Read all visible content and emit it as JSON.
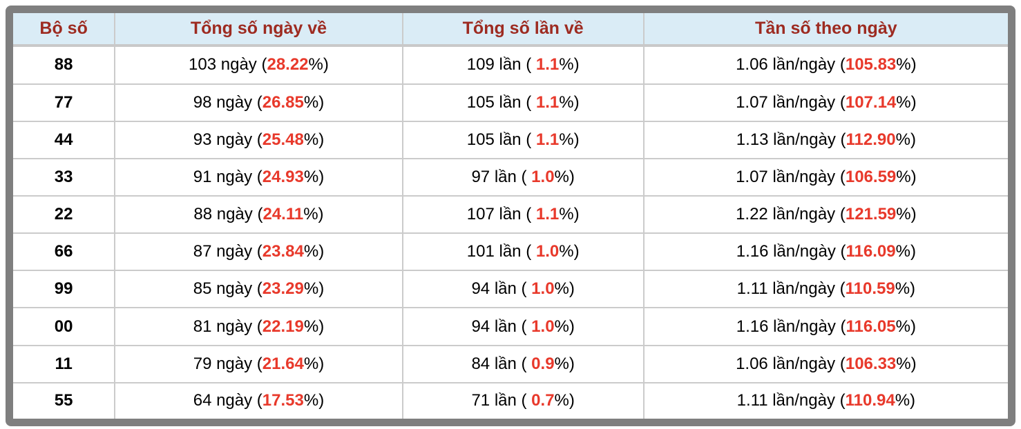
{
  "table": {
    "headers": [
      "Bộ số",
      "Tổng số ngày về",
      "Tổng số lần về",
      "Tần số theo ngày"
    ],
    "rows": [
      {
        "num": "88",
        "days": "103 ngày",
        "days_pct": "28.22",
        "times": "109 lần",
        "times_pct": "1.1",
        "freq": "1.06 lần/ngày",
        "freq_pct": "105.83"
      },
      {
        "num": "77",
        "days": "98 ngày",
        "days_pct": "26.85",
        "times": "105 lần",
        "times_pct": "1.1",
        "freq": "1.07 lần/ngày",
        "freq_pct": "107.14"
      },
      {
        "num": "44",
        "days": "93 ngày",
        "days_pct": "25.48",
        "times": "105 lần",
        "times_pct": "1.1",
        "freq": "1.13 lần/ngày",
        "freq_pct": "112.90"
      },
      {
        "num": "33",
        "days": "91 ngày",
        "days_pct": "24.93",
        "times": "97 lần",
        "times_pct": "1.0",
        "freq": "1.07 lần/ngày",
        "freq_pct": "106.59"
      },
      {
        "num": "22",
        "days": "88 ngày",
        "days_pct": "24.11",
        "times": "107 lần",
        "times_pct": "1.1",
        "freq": "1.22 lần/ngày",
        "freq_pct": "121.59"
      },
      {
        "num": "66",
        "days": "87 ngày",
        "days_pct": "23.84",
        "times": "101 lần",
        "times_pct": "1.0",
        "freq": "1.16 lần/ngày",
        "freq_pct": "116.09"
      },
      {
        "num": "99",
        "days": "85 ngày",
        "days_pct": "23.29",
        "times": "94 lần",
        "times_pct": "1.0",
        "freq": "1.11 lần/ngày",
        "freq_pct": "110.59"
      },
      {
        "num": "00",
        "days": "81 ngày",
        "days_pct": "22.19",
        "times": "94 lần",
        "times_pct": "1.0",
        "freq": "1.16 lần/ngày",
        "freq_pct": "116.05"
      },
      {
        "num": "11",
        "days": "79 ngày",
        "days_pct": "21.64",
        "times": "84 lần",
        "times_pct": "0.9",
        "freq": "1.06 lần/ngày",
        "freq_pct": "106.33"
      },
      {
        "num": "55",
        "days": "64 ngày",
        "days_pct": "17.53",
        "times": "71 lần",
        "times_pct": "0.7",
        "freq": "1.11 lần/ngày",
        "freq_pct": "110.94"
      }
    ]
  },
  "format": {
    "open_paren": " (",
    "open_paren_spaced": " ( ",
    "close_paren": "%)"
  },
  "colors": {
    "header_text": "#9d2b21",
    "header_bg": "#daecf6",
    "accent_red": "#e8392b",
    "frame_border": "#7f7f7f",
    "grid_line": "#cbcbcb",
    "body_text": "#000000"
  }
}
